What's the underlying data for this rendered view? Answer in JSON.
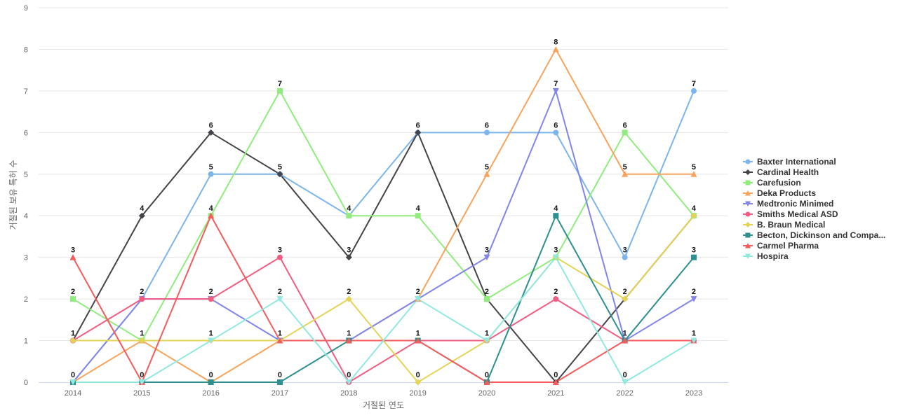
{
  "chart_data": {
    "type": "line",
    "title": "",
    "xlabel": "거절된 연도",
    "ylabel": "거절된 보유 특허 수",
    "ylim": [
      0,
      9
    ],
    "y_ticks": [
      0,
      1,
      2,
      3,
      4,
      5,
      6,
      7,
      8,
      9
    ],
    "grid": true,
    "legend_position": "right",
    "x": [
      "2014",
      "2015",
      "2016",
      "2017",
      "2018",
      "2019",
      "2020",
      "2021",
      "2022",
      "2023"
    ],
    "series": [
      {
        "name": "Baxter International",
        "color": "#7cb5ec",
        "marker": "circle",
        "values": [
          0,
          2,
          5,
          5,
          4,
          6,
          6,
          6,
          3,
          7
        ]
      },
      {
        "name": "Cardinal Health",
        "color": "#434348",
        "marker": "diamond",
        "values": [
          1,
          4,
          6,
          5,
          3,
          6,
          2,
          0,
          2,
          4
        ]
      },
      {
        "name": "Carefusion",
        "color": "#90ed7d",
        "marker": "square",
        "values": [
          2,
          1,
          4,
          7,
          4,
          4,
          2,
          3,
          6,
          4
        ]
      },
      {
        "name": "Deka Products",
        "color": "#f7a35c",
        "marker": "triangle",
        "values": [
          0,
          1,
          0,
          1,
          1,
          2,
          5,
          8,
          5,
          5
        ]
      },
      {
        "name": "Medtronic Minimed",
        "color": "#8085e9",
        "marker": "triangle-down",
        "values": [
          0,
          2,
          2,
          1,
          1,
          2,
          3,
          7,
          1,
          2
        ]
      },
      {
        "name": "Smiths Medical ASD",
        "color": "#f15c80",
        "marker": "circle",
        "values": [
          1,
          2,
          2,
          3,
          0,
          1,
          1,
          2,
          1,
          1
        ]
      },
      {
        "name": "B. Braun Medical",
        "color": "#e4d354",
        "marker": "diamond",
        "values": [
          1,
          1,
          1,
          1,
          2,
          0,
          1,
          3,
          2,
          4
        ]
      },
      {
        "name": "Becton, Dickinson and Compa...",
        "color": "#2b908f",
        "marker": "square",
        "values": [
          0,
          0,
          0,
          0,
          1,
          1,
          0,
          4,
          1,
          3
        ]
      },
      {
        "name": "Carmel Pharma",
        "color": "#f45b5b",
        "marker": "triangle",
        "values": [
          3,
          0,
          4,
          1,
          1,
          1,
          0,
          0,
          1,
          1
        ]
      },
      {
        "name": "Hospira",
        "color": "#91e8e1",
        "marker": "triangle-down",
        "values": [
          0,
          0,
          1,
          2,
          0,
          2,
          1,
          3,
          0,
          1
        ]
      }
    ],
    "data_labels": [
      {
        "series": 5,
        "x_index": 0,
        "value": "1"
      },
      {
        "series": 2,
        "x_index": 0,
        "value": "2"
      },
      {
        "series": 8,
        "x_index": 0,
        "value": "3"
      },
      {
        "series": 7,
        "x_index": 0,
        "value": "0"
      },
      {
        "series": 1,
        "x_index": 1,
        "value": "4"
      },
      {
        "series": 5,
        "x_index": 1,
        "value": "2"
      },
      {
        "series": 6,
        "x_index": 1,
        "value": "1"
      },
      {
        "series": 8,
        "x_index": 1,
        "value": "0"
      },
      {
        "series": 1,
        "x_index": 2,
        "value": "6"
      },
      {
        "series": 0,
        "x_index": 2,
        "value": "5"
      },
      {
        "series": 2,
        "x_index": 2,
        "value": "4"
      },
      {
        "series": 5,
        "x_index": 2,
        "value": "2"
      },
      {
        "series": 9,
        "x_index": 2,
        "value": "1"
      },
      {
        "series": 7,
        "x_index": 2,
        "value": "0"
      },
      {
        "series": 2,
        "x_index": 3,
        "value": "7"
      },
      {
        "series": 1,
        "x_index": 3,
        "value": "5"
      },
      {
        "series": 5,
        "x_index": 3,
        "value": "3"
      },
      {
        "series": 9,
        "x_index": 3,
        "value": "2"
      },
      {
        "series": 6,
        "x_index": 3,
        "value": "1"
      },
      {
        "series": 7,
        "x_index": 3,
        "value": "0"
      },
      {
        "series": 2,
        "x_index": 4,
        "value": "4"
      },
      {
        "series": 1,
        "x_index": 4,
        "value": "3"
      },
      {
        "series": 6,
        "x_index": 4,
        "value": "2"
      },
      {
        "series": 7,
        "x_index": 4,
        "value": "1"
      },
      {
        "series": 5,
        "x_index": 4,
        "value": "0"
      },
      {
        "series": 1,
        "x_index": 5,
        "value": "6"
      },
      {
        "series": 2,
        "x_index": 5,
        "value": "4"
      },
      {
        "series": 9,
        "x_index": 5,
        "value": "2"
      },
      {
        "series": 7,
        "x_index": 5,
        "value": "1"
      },
      {
        "series": 6,
        "x_index": 5,
        "value": "0"
      },
      {
        "series": 0,
        "x_index": 6,
        "value": "6"
      },
      {
        "series": 3,
        "x_index": 6,
        "value": "5"
      },
      {
        "series": 4,
        "x_index": 6,
        "value": "3"
      },
      {
        "series": 2,
        "x_index": 6,
        "value": "2"
      },
      {
        "series": 9,
        "x_index": 6,
        "value": "1"
      },
      {
        "series": 7,
        "x_index": 6,
        "value": "0"
      },
      {
        "series": 3,
        "x_index": 7,
        "value": "8"
      },
      {
        "series": 4,
        "x_index": 7,
        "value": "7"
      },
      {
        "series": 0,
        "x_index": 7,
        "value": "6"
      },
      {
        "series": 7,
        "x_index": 7,
        "value": "4"
      },
      {
        "series": 9,
        "x_index": 7,
        "value": "3"
      },
      {
        "series": 5,
        "x_index": 7,
        "value": "2"
      },
      {
        "series": 1,
        "x_index": 7,
        "value": "0"
      },
      {
        "series": 2,
        "x_index": 8,
        "value": "6"
      },
      {
        "series": 3,
        "x_index": 8,
        "value": "5"
      },
      {
        "series": 0,
        "x_index": 8,
        "value": "3"
      },
      {
        "series": 6,
        "x_index": 8,
        "value": "2"
      },
      {
        "series": 7,
        "x_index": 8,
        "value": "1"
      },
      {
        "series": 9,
        "x_index": 8,
        "value": "0"
      },
      {
        "series": 0,
        "x_index": 9,
        "value": "7"
      },
      {
        "series": 3,
        "x_index": 9,
        "value": "5"
      },
      {
        "series": 2,
        "x_index": 9,
        "value": "4"
      },
      {
        "series": 7,
        "x_index": 9,
        "value": "3"
      },
      {
        "series": 4,
        "x_index": 9,
        "value": "2"
      },
      {
        "series": 9,
        "x_index": 9,
        "value": "1"
      }
    ]
  }
}
